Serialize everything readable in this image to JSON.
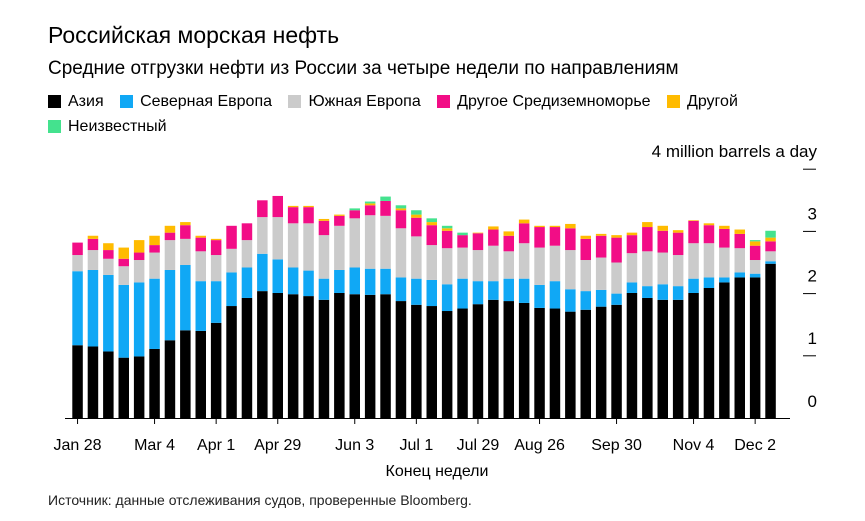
{
  "title": "Российская морская нефть",
  "subtitle": "Средние отгрузки нефти из России за четыре недели по направлениям",
  "source": "Источник: данные отслеживания судов, проверенные Bloomberg.",
  "chart_data": {
    "type": "bar",
    "stacked": true,
    "title": "Российская морская нефть",
    "subtitle": "Средние отгрузки нефти из России за четыре недели по направлениям",
    "xlabel": "Конец недели",
    "ylabel": "4 million barrels a day",
    "ylim": [
      0,
      4
    ],
    "yticks": [
      "0",
      "1",
      "2",
      "3",
      "4 million barrels a day"
    ],
    "legend_position": "top-left",
    "grid": false,
    "x": [
      "Jan 28",
      "Feb 4",
      "Feb 11",
      "Feb 18",
      "Feb 25",
      "Mar 4",
      "Mar 11",
      "Mar 18",
      "Mar 25",
      "Apr 1",
      "Apr 8",
      "Apr 15",
      "Apr 22",
      "Apr 29",
      "May 6",
      "May 13",
      "May 20",
      "May 27",
      "Jun 3",
      "Jun 10",
      "Jun 17",
      "Jun 24",
      "Jul 1",
      "Jul 8",
      "Jul 15",
      "Jul 22",
      "Jul 29",
      "Aug 5",
      "Aug 12",
      "Aug 19",
      "Aug 26",
      "Sep 2",
      "Sep 9",
      "Sep 16",
      "Sep 23",
      "Sep 30",
      "Oct 7",
      "Oct 14",
      "Oct 21",
      "Oct 28",
      "Nov 4",
      "Nov 11",
      "Nov 18",
      "Nov 25",
      "Dec 2",
      "Dec 9"
    ],
    "xtick_labels": [
      "Jan 28",
      "Mar 4",
      "Apr 1",
      "Apr 29",
      "Jun 3",
      "Jul 1",
      "Jul 29",
      "Aug 26",
      "Sep 30",
      "Nov 4",
      "Dec 2"
    ],
    "series": [
      {
        "name": "Азия",
        "color": "#000000",
        "values": [
          1.17,
          1.15,
          1.07,
          0.97,
          0.99,
          1.11,
          1.25,
          1.41,
          1.4,
          1.53,
          1.8,
          1.93,
          2.04,
          2.01,
          1.99,
          1.96,
          1.9,
          2.01,
          1.99,
          1.98,
          1.99,
          1.88,
          1.82,
          1.8,
          1.72,
          1.76,
          1.83,
          1.9,
          1.88,
          1.85,
          1.77,
          1.76,
          1.71,
          1.74,
          1.79,
          1.82,
          2.01,
          1.93,
          1.9,
          1.9,
          2.01,
          2.09,
          2.18,
          2.26,
          2.26,
          2.48
        ]
      },
      {
        "name": "Северная Европа",
        "color": "#10a8f5",
        "values": [
          1.19,
          1.23,
          1.23,
          1.17,
          1.19,
          1.13,
          1.13,
          1.05,
          0.8,
          0.67,
          0.54,
          0.49,
          0.6,
          0.54,
          0.43,
          0.41,
          0.34,
          0.37,
          0.43,
          0.42,
          0.41,
          0.38,
          0.42,
          0.42,
          0.43,
          0.48,
          0.37,
          0.3,
          0.36,
          0.39,
          0.37,
          0.44,
          0.36,
          0.3,
          0.27,
          0.18,
          0.17,
          0.19,
          0.25,
          0.22,
          0.23,
          0.17,
          0.08,
          0.08,
          0.06,
          0.04
        ]
      },
      {
        "name": "Южная Европа",
        "color": "#cbcbcb",
        "values": [
          0.26,
          0.32,
          0.26,
          0.3,
          0.36,
          0.42,
          0.48,
          0.42,
          0.48,
          0.42,
          0.38,
          0.44,
          0.59,
          0.68,
          0.71,
          0.76,
          0.7,
          0.71,
          0.79,
          0.86,
          0.85,
          0.79,
          0.68,
          0.56,
          0.58,
          0.5,
          0.5,
          0.57,
          0.44,
          0.57,
          0.6,
          0.57,
          0.63,
          0.5,
          0.52,
          0.5,
          0.47,
          0.56,
          0.51,
          0.5,
          0.57,
          0.55,
          0.48,
          0.39,
          0.22,
          0.16
        ]
      },
      {
        "name": "Другое Средиземноморье",
        "color": "#f20d86",
        "values": [
          0.2,
          0.18,
          0.14,
          0.12,
          0.12,
          0.12,
          0.12,
          0.22,
          0.22,
          0.24,
          0.37,
          0.27,
          0.27,
          0.34,
          0.26,
          0.26,
          0.23,
          0.16,
          0.13,
          0.16,
          0.24,
          0.29,
          0.3,
          0.32,
          0.28,
          0.2,
          0.27,
          0.26,
          0.25,
          0.32,
          0.33,
          0.3,
          0.35,
          0.34,
          0.35,
          0.4,
          0.29,
          0.39,
          0.35,
          0.36,
          0.36,
          0.29,
          0.3,
          0.23,
          0.23,
          0.16
        ]
      },
      {
        "name": "Другой",
        "color": "#ffbb00",
        "values": [
          0,
          0.05,
          0.11,
          0.18,
          0.2,
          0.15,
          0.11,
          0.05,
          0.03,
          0.02,
          0,
          0,
          0,
          0,
          0.02,
          0.02,
          0.03,
          0.02,
          0,
          0.03,
          0,
          0.03,
          0.05,
          0.05,
          0.04,
          0,
          0.01,
          0.05,
          0.07,
          0.06,
          0.02,
          0.02,
          0.07,
          0.05,
          0.03,
          0.04,
          0.04,
          0.08,
          0.08,
          0.04,
          0.01,
          0.03,
          0.05,
          0.07,
          0.07,
          0.06
        ]
      },
      {
        "name": "Неизвестный",
        "color": "#44e28e",
        "values": [
          0,
          0,
          0,
          0,
          0,
          0,
          0,
          0,
          0,
          0,
          0,
          0,
          0,
          0,
          0,
          0,
          0,
          0,
          0.03,
          0.03,
          0.07,
          0.05,
          0.07,
          0.06,
          0.04,
          0.04,
          0,
          0,
          0,
          0,
          0,
          0,
          0,
          0,
          0,
          0,
          0,
          0,
          0,
          0,
          0,
          0,
          0,
          0,
          0.02,
          0.11
        ]
      }
    ]
  }
}
